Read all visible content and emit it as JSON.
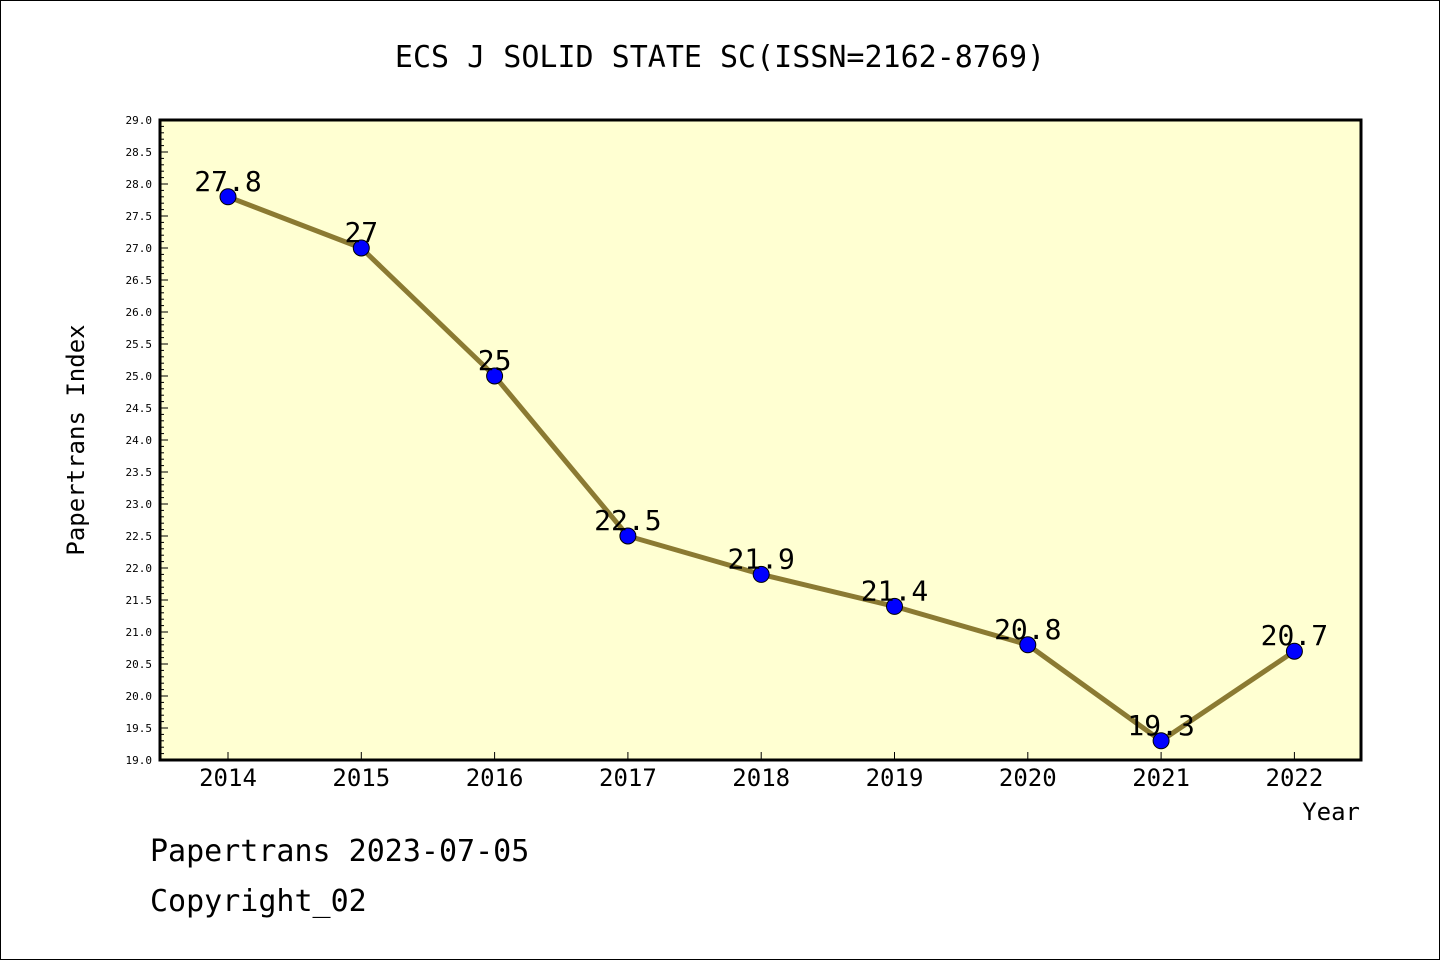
{
  "chart_data": {
    "type": "line",
    "title": "ECS J SOLID STATE SC(ISSN=2162-8769)",
    "xlabel": "Year",
    "ylabel": "Papertrans Index",
    "categories": [
      "2014",
      "2015",
      "2016",
      "2017",
      "2018",
      "2019",
      "2020",
      "2021",
      "2022"
    ],
    "series": [
      {
        "values": [
          27.8,
          27,
          25,
          22.5,
          21.9,
          21.4,
          20.8,
          19.3,
          20.7
        ]
      }
    ],
    "data_labels": [
      "27.8",
      "27",
      "25",
      "22.5",
      "21.9",
      "21.4",
      "20.8",
      "19.3",
      "20.7"
    ],
    "ylim": [
      19.0,
      29.0
    ],
    "yticks": [
      "19.0",
      "19.5",
      "20.0",
      "20.5",
      "21.0",
      "21.5",
      "22.0",
      "22.5",
      "23.0",
      "23.5",
      "24.0",
      "24.5",
      "25.0",
      "25.5",
      "26.0",
      "26.5",
      "27.0",
      "27.5",
      "28.0",
      "28.5",
      "29.0"
    ],
    "grid": false,
    "colors": {
      "plot_background": "#ffffd2",
      "line": "#8b7a32",
      "marker": "#0000ff"
    }
  },
  "footer": {
    "line1": "Papertrans 2023-07-05",
    "line2": "Copyright_02"
  }
}
